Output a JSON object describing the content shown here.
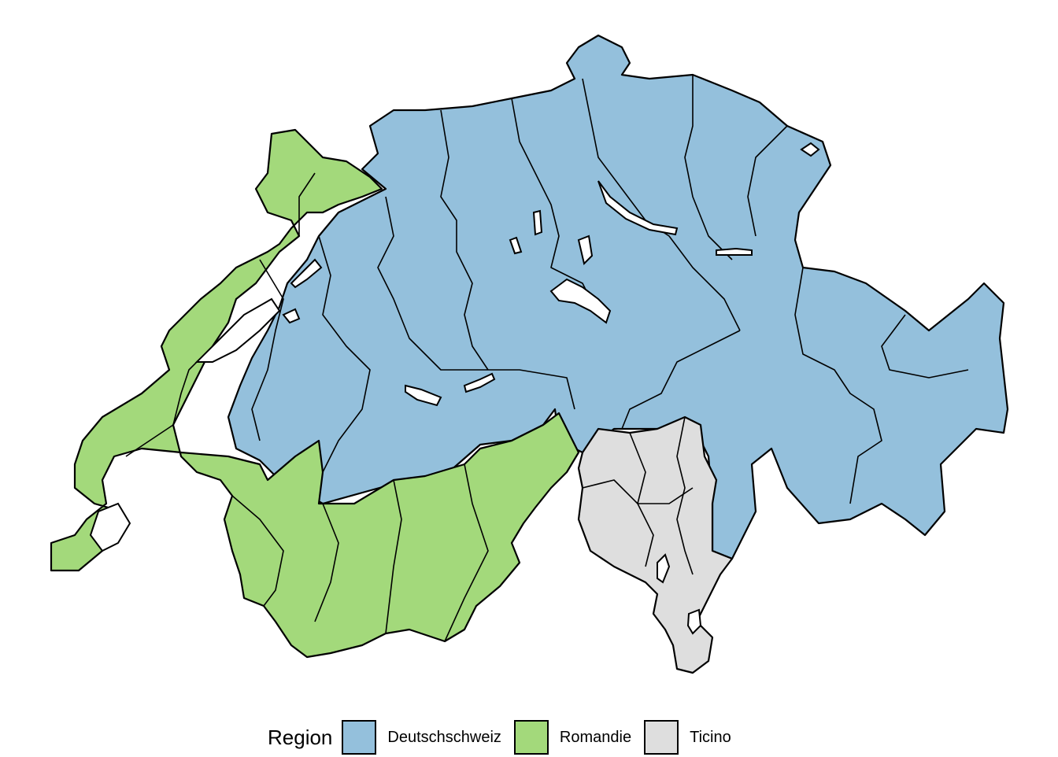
{
  "legend": {
    "title": "Region",
    "items": [
      {
        "label": "Deutschschweiz",
        "color": "#94c0dc"
      },
      {
        "label": "Romandie",
        "color": "#a3d97b"
      },
      {
        "label": "Ticino",
        "color": "#dedede"
      }
    ]
  }
}
